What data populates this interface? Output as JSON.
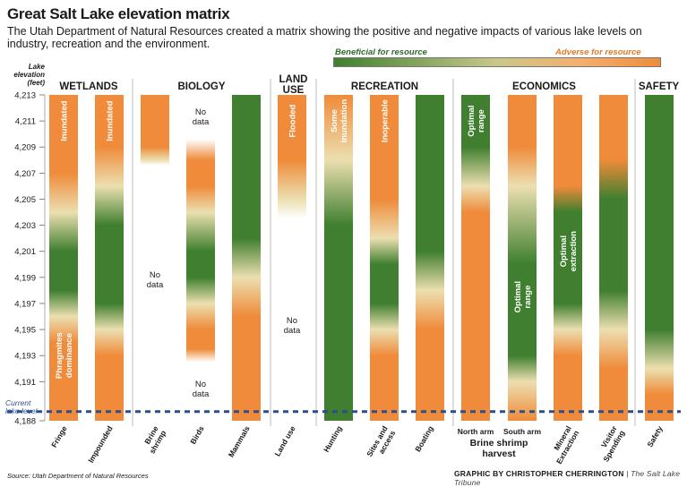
{
  "header": {
    "title": "Great Salt Lake elevation matrix",
    "subtitle": "The Utah Department of Natural Resources created a matrix showing the positive and negative impacts of various lake levels on industry, recreation and the environment."
  },
  "legend": {
    "beneficial": "Beneficial for resource",
    "adverse": "Adverse for resource"
  },
  "footer": {
    "source": "Source: Utah Department of Natural Resources",
    "credit": "GRAPHIC BY CHRISTOPHER CHERRINGTON",
    "publication": "| The Salt Lake Tribune"
  },
  "chart_data": {
    "type": "heatmap",
    "title": "Great Salt Lake elevation matrix",
    "ylabel": "Lake elevation (feet)",
    "ylim": [
      4188,
      4213
    ],
    "yticks": [
      "4,213",
      "4,211",
      "4,209",
      "4,207",
      "4,205",
      "4,203",
      "4,201",
      "4,199",
      "4,197",
      "4,195",
      "4,193",
      "4,191",
      "4,188"
    ],
    "current_level": {
      "label": "Current lake level",
      "value": 4188.7
    },
    "colors": {
      "beneficial": "#3f7f2f",
      "neutral": "#ecdfb0",
      "adverse": "#ef8b3a",
      "nodata": "#ffffff"
    },
    "categories": [
      {
        "name": "WETLANDS",
        "columns": [
          0,
          1
        ]
      },
      {
        "name": "BIOLOGY",
        "columns": [
          2,
          3,
          4
        ]
      },
      {
        "name": "LAND USE",
        "columns": [
          5
        ]
      },
      {
        "name": "RECREATION",
        "columns": [
          6,
          7,
          8
        ]
      },
      {
        "name": "ECONOMICS",
        "columns": [
          9,
          10,
          11,
          12
        ]
      },
      {
        "name": "SAFETY",
        "columns": [
          13
        ]
      }
    ],
    "sub_group": {
      "label": "Brine shrimp harvest",
      "columns": [
        9,
        10
      ]
    },
    "columns": [
      {
        "name": "Fringe",
        "stops": [
          [
            4213,
            "adverse"
          ],
          [
            4207,
            "adverse"
          ],
          [
            4204,
            "neutral"
          ],
          [
            4201,
            "beneficial"
          ],
          [
            4198,
            "beneficial"
          ],
          [
            4196,
            "neutral"
          ],
          [
            4194,
            "adverse"
          ],
          [
            4188,
            "adverse"
          ]
        ],
        "labels": [
          {
            "text": "Inundated",
            "lines": [
              "Inundated"
            ],
            "at": 4211
          },
          {
            "text": "Phragmites dominance",
            "lines": [
              "Phragmites",
              "dominance"
            ],
            "at": 4193
          }
        ]
      },
      {
        "name": "Impounded",
        "stops": [
          [
            4213,
            "adverse"
          ],
          [
            4209,
            "adverse"
          ],
          [
            4206,
            "neutral"
          ],
          [
            4203,
            "beneficial"
          ],
          [
            4197,
            "beneficial"
          ],
          [
            4195,
            "neutral"
          ],
          [
            4193,
            "adverse"
          ],
          [
            4188,
            "adverse"
          ]
        ],
        "labels": [
          {
            "text": "Inundated",
            "lines": [
              "Inundated"
            ],
            "at": 4211
          }
        ]
      },
      {
        "name": "Brine shrimp",
        "stops": [
          [
            4213,
            "adverse"
          ],
          [
            4209,
            "adverse"
          ],
          [
            4208,
            "neutral"
          ],
          [
            4207.6,
            "nodata"
          ],
          [
            4188,
            "nodata"
          ]
        ],
        "labels": [
          {
            "text": "No data",
            "lines": [
              "No",
              "data"
            ],
            "at": 4199,
            "dark": true
          }
        ]
      },
      {
        "name": "Birds",
        "stops": [
          [
            4213,
            "nodata"
          ],
          [
            4209.6,
            "nodata"
          ],
          [
            4208,
            "adverse"
          ],
          [
            4206,
            "adverse"
          ],
          [
            4204,
            "neutral"
          ],
          [
            4201,
            "beneficial"
          ],
          [
            4199,
            "beneficial"
          ],
          [
            4197,
            "neutral"
          ],
          [
            4195,
            "adverse"
          ],
          [
            4193.5,
            "adverse"
          ],
          [
            4192.5,
            "nodata"
          ],
          [
            4188,
            "nodata"
          ]
        ],
        "labels": [
          {
            "text": "No data",
            "lines": [
              "No",
              "data"
            ],
            "at": 4211.5,
            "dark": true
          },
          {
            "text": "No data",
            "lines": [
              "No",
              "data"
            ],
            "at": 4190.6,
            "dark": true
          }
        ]
      },
      {
        "name": "Mammals",
        "stops": [
          [
            4213,
            "beneficial"
          ],
          [
            4202,
            "beneficial"
          ],
          [
            4199,
            "neutral"
          ],
          [
            4196,
            "adverse"
          ],
          [
            4188,
            "adverse"
          ]
        ],
        "labels": []
      },
      {
        "name": "Land use",
        "stops": [
          [
            4213,
            "adverse"
          ],
          [
            4208,
            "adverse"
          ],
          [
            4205,
            "neutral"
          ],
          [
            4203.5,
            "nodata"
          ],
          [
            4188,
            "nodata"
          ]
        ],
        "labels": [
          {
            "text": "Flooded",
            "lines": [
              "Flooded"
            ],
            "at": 4211
          },
          {
            "text": "No data",
            "lines": [
              "No",
              "data"
            ],
            "at": 4195.5,
            "dark": true
          }
        ]
      },
      {
        "name": "Hunting",
        "stops": [
          [
            4213,
            "adverse"
          ],
          [
            4208,
            "neutral"
          ],
          [
            4203,
            "beneficial"
          ],
          [
            4188,
            "beneficial"
          ]
        ],
        "labels": [
          {
            "text": "Some inundation",
            "lines": [
              "Some",
              "inundation"
            ],
            "at": 4211
          }
        ]
      },
      {
        "name": "Sites and access",
        "stops": [
          [
            4213,
            "adverse"
          ],
          [
            4205,
            "adverse"
          ],
          [
            4202,
            "neutral"
          ],
          [
            4200,
            "beneficial"
          ],
          [
            4197,
            "beneficial"
          ],
          [
            4195,
            "neutral"
          ],
          [
            4193,
            "adverse"
          ],
          [
            4188,
            "adverse"
          ]
        ],
        "labels": [
          {
            "text": "Inoperable",
            "lines": [
              "Inoperable"
            ],
            "at": 4211
          }
        ]
      },
      {
        "name": "Boating",
        "stops": [
          [
            4213,
            "beneficial"
          ],
          [
            4201,
            "beneficial"
          ],
          [
            4198,
            "neutral"
          ],
          [
            4195,
            "adverse"
          ],
          [
            4188,
            "adverse"
          ]
        ],
        "labels": []
      },
      {
        "name": "North arm",
        "stops": [
          [
            4213,
            "beneficial"
          ],
          [
            4209,
            "beneficial"
          ],
          [
            4206,
            "neutral"
          ],
          [
            4204,
            "adverse"
          ],
          [
            4188,
            "adverse"
          ]
        ],
        "labels": [
          {
            "text": "Optimal range",
            "lines": [
              "Optimal",
              "range"
            ],
            "at": 4211
          }
        ]
      },
      {
        "name": "South arm",
        "stops": [
          [
            4213,
            "adverse"
          ],
          [
            4209,
            "adverse"
          ],
          [
            4206,
            "neutral"
          ],
          [
            4200,
            "beneficial"
          ],
          [
            4193,
            "beneficial"
          ],
          [
            4191,
            "neutral"
          ],
          [
            4188,
            "adverse"
          ]
        ],
        "labels": [
          {
            "text": "Optimal range",
            "lines": [
              "Optimal",
              "range"
            ],
            "at": 4197.5
          }
        ]
      },
      {
        "name": "Mineral Extraction",
        "stops": [
          [
            4213,
            "adverse"
          ],
          [
            4206,
            "adverse"
          ],
          [
            4204,
            "beneficial"
          ],
          [
            4197,
            "beneficial"
          ],
          [
            4195,
            "neutral"
          ],
          [
            4193,
            "adverse"
          ],
          [
            4188,
            "adverse"
          ]
        ],
        "labels": [
          {
            "text": "Optimal extraction",
            "lines": [
              "Optimal",
              "extraction"
            ],
            "at": 4201
          }
        ]
      },
      {
        "name": "Visitor Spending",
        "stops": [
          [
            4213,
            "adverse"
          ],
          [
            4208,
            "adverse"
          ],
          [
            4205,
            "beneficial"
          ],
          [
            4198,
            "beneficial"
          ],
          [
            4195,
            "neutral"
          ],
          [
            4192,
            "adverse"
          ],
          [
            4188,
            "adverse"
          ]
        ],
        "labels": []
      },
      {
        "name": "Safety",
        "stops": [
          [
            4213,
            "beneficial"
          ],
          [
            4195,
            "beneficial"
          ],
          [
            4192,
            "neutral"
          ],
          [
            4190,
            "adverse"
          ],
          [
            4188,
            "adverse"
          ]
        ],
        "labels": []
      }
    ]
  }
}
